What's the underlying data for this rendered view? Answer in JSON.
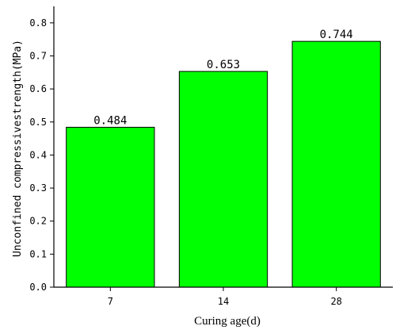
{
  "chart_data": {
    "type": "bar",
    "categories": [
      "7",
      "14",
      "28"
    ],
    "values": [
      0.484,
      0.653,
      0.744
    ],
    "value_labels": [
      "0.484",
      "0.653",
      "0.744"
    ],
    "xlabel": "Curing age(d)",
    "ylabel": "Unconfined compressivestrength(MPa)",
    "ylim": [
      0,
      0.85
    ],
    "yticks": [
      0.0,
      0.1,
      0.2,
      0.3,
      0.4,
      0.5,
      0.6,
      0.7,
      0.8
    ],
    "ytick_labels": [
      "0.0",
      "0.1",
      "0.2",
      "0.3",
      "0.4",
      "0.5",
      "0.6",
      "0.7",
      "0.8"
    ],
    "grid": false,
    "bar_color": "#00ff00",
    "edge_color": "#000000"
  }
}
